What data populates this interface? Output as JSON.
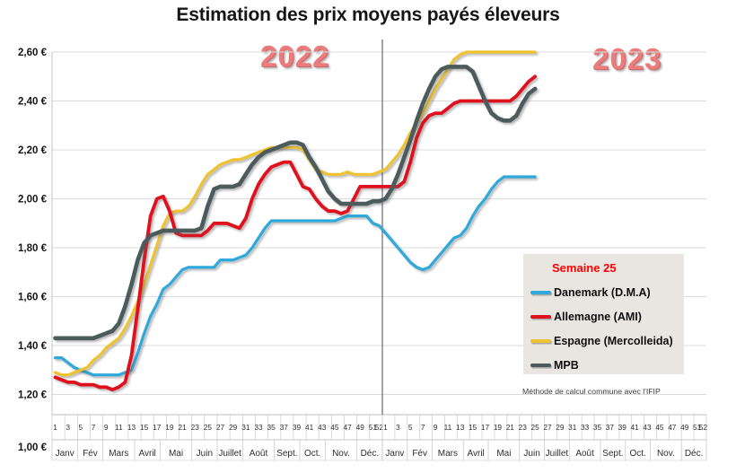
{
  "title": "Estimation des prix moyens payés éleveurs",
  "year_labels": [
    "2022",
    "2023"
  ],
  "legend": {
    "title": "Semaine 25",
    "items": [
      {
        "label": "Danemark (D.M.A)"
      },
      {
        "label": "Allemagne (AMI)"
      },
      {
        "label": "Espagne (Mercolleida)"
      },
      {
        "label": "MPB"
      }
    ]
  },
  "footnote": "Méthode de calcul commune avec l'IFIP",
  "y_axis": {
    "labels": [
      "2,60 €",
      "2,40 €",
      "2,20 €",
      "2,00 €",
      "1,80 €",
      "1,60 €",
      "1,40 €",
      "1,20 €",
      "1,00 €"
    ],
    "values": [
      2.6,
      2.4,
      2.2,
      2.0,
      1.8,
      1.6,
      1.4,
      1.2,
      1.0
    ]
  },
  "x_axis": {
    "week_tick_labels": [
      "1",
      "3",
      "5",
      "7",
      "9",
      "11",
      "13",
      "15",
      "17",
      "19",
      "21",
      "23",
      "25",
      "27",
      "29",
      "31",
      "33",
      "35",
      "37",
      "39",
      "41",
      "43",
      "45",
      "47",
      "49",
      "51",
      "52"
    ],
    "month_labels": [
      "Janv",
      "Fév",
      "Mars",
      "Avril",
      "Mai",
      "Juin",
      "Juillet",
      "Août",
      "Sept.",
      "Oct.",
      "Nov.",
      "Déc."
    ],
    "month_week_spans": [
      4,
      4,
      5,
      4,
      5,
      4,
      4,
      5,
      4,
      4,
      5,
      4
    ]
  },
  "chart_data": {
    "type": "line",
    "title": "Estimation des prix moyens payés éleveurs",
    "x_unit": "semaine",
    "years": [
      {
        "label": "2022",
        "weeks": 52
      },
      {
        "label": "2023",
        "weeks": 52,
        "data_through_week": 25
      }
    ],
    "ylim": [
      1.0,
      2.6
    ],
    "y_tick_step": 0.2,
    "grid": "horizontal",
    "legend_position": "right-middle",
    "series": [
      {
        "name": "Danemark (D.M.A)",
        "color": "#2FA9DC",
        "values_2022": [
          1.35,
          1.35,
          1.33,
          1.31,
          1.3,
          1.29,
          1.28,
          1.28,
          1.28,
          1.28,
          1.28,
          1.29,
          1.3,
          1.37,
          1.45,
          1.52,
          1.57,
          1.63,
          1.65,
          1.68,
          1.71,
          1.72,
          1.72,
          1.72,
          1.72,
          1.72,
          1.75,
          1.75,
          1.75,
          1.76,
          1.77,
          1.8,
          1.84,
          1.88,
          1.91,
          1.91,
          1.91,
          1.91,
          1.91,
          1.91,
          1.91,
          1.91,
          1.91,
          1.91,
          1.91,
          1.92,
          1.93,
          1.93,
          1.93,
          1.93,
          1.9,
          1.89
        ],
        "values_2023": [
          1.86,
          1.83,
          1.8,
          1.77,
          1.74,
          1.72,
          1.71,
          1.72,
          1.75,
          1.78,
          1.81,
          1.84,
          1.85,
          1.88,
          1.93,
          1.97,
          2.0,
          2.04,
          2.07,
          2.09,
          2.09,
          2.09,
          2.09,
          2.09,
          2.09
        ]
      },
      {
        "name": "Allemagne (AMI)",
        "color": "#E0111C",
        "values_2022": [
          1.27,
          1.26,
          1.25,
          1.25,
          1.24,
          1.24,
          1.24,
          1.23,
          1.23,
          1.22,
          1.23,
          1.25,
          1.36,
          1.55,
          1.75,
          1.93,
          2.0,
          2.01,
          1.95,
          1.86,
          1.85,
          1.85,
          1.85,
          1.85,
          1.87,
          1.9,
          1.9,
          1.9,
          1.89,
          1.88,
          1.92,
          2.0,
          2.06,
          2.1,
          2.13,
          2.14,
          2.15,
          2.15,
          2.1,
          2.05,
          2.04,
          2.0,
          1.97,
          1.95,
          1.95,
          1.94,
          1.95,
          2.0,
          2.05,
          2.05,
          2.05,
          2.05
        ],
        "values_2023": [
          2.05,
          2.05,
          2.05,
          2.07,
          2.15,
          2.25,
          2.31,
          2.34,
          2.35,
          2.35,
          2.37,
          2.39,
          2.4,
          2.4,
          2.4,
          2.4,
          2.4,
          2.4,
          2.4,
          2.4,
          2.4,
          2.42,
          2.45,
          2.48,
          2.5
        ]
      },
      {
        "name": "Espagne (Mercolleida)",
        "color": "#EFC32F",
        "values_2022": [
          1.29,
          1.28,
          1.28,
          1.29,
          1.3,
          1.31,
          1.34,
          1.36,
          1.39,
          1.41,
          1.43,
          1.47,
          1.52,
          1.58,
          1.65,
          1.73,
          1.81,
          1.89,
          1.94,
          1.95,
          1.95,
          1.97,
          2.01,
          2.06,
          2.1,
          2.12,
          2.14,
          2.15,
          2.16,
          2.16,
          2.17,
          2.18,
          2.19,
          2.2,
          2.21,
          2.21,
          2.21,
          2.21,
          2.21,
          2.2,
          2.16,
          2.12,
          2.11,
          2.1,
          2.1,
          2.1,
          2.11,
          2.1,
          2.1,
          2.1,
          2.1,
          2.11
        ],
        "values_2023": [
          2.12,
          2.15,
          2.18,
          2.22,
          2.27,
          2.31,
          2.35,
          2.4,
          2.45,
          2.49,
          2.53,
          2.57,
          2.59,
          2.6,
          2.6,
          2.6,
          2.6,
          2.6,
          2.6,
          2.6,
          2.6,
          2.6,
          2.6,
          2.6,
          2.6
        ]
      },
      {
        "name": "MPB",
        "color": "#4C5B5C",
        "values_2022": [
          1.43,
          1.43,
          1.43,
          1.43,
          1.43,
          1.43,
          1.43,
          1.44,
          1.45,
          1.46,
          1.49,
          1.56,
          1.65,
          1.75,
          1.82,
          1.85,
          1.86,
          1.87,
          1.87,
          1.87,
          1.87,
          1.87,
          1.87,
          1.88,
          1.97,
          2.04,
          2.05,
          2.05,
          2.05,
          2.06,
          2.1,
          2.14,
          2.17,
          2.19,
          2.2,
          2.21,
          2.22,
          2.23,
          2.23,
          2.22,
          2.17,
          2.13,
          2.08,
          2.03,
          2.0,
          1.98,
          1.98,
          1.98,
          1.98,
          1.98,
          1.99,
          1.99
        ],
        "values_2023": [
          2.0,
          2.04,
          2.1,
          2.17,
          2.24,
          2.32,
          2.39,
          2.45,
          2.5,
          2.53,
          2.54,
          2.54,
          2.54,
          2.54,
          2.52,
          2.46,
          2.4,
          2.35,
          2.33,
          2.32,
          2.32,
          2.34,
          2.39,
          2.43,
          2.45
        ]
      }
    ]
  }
}
